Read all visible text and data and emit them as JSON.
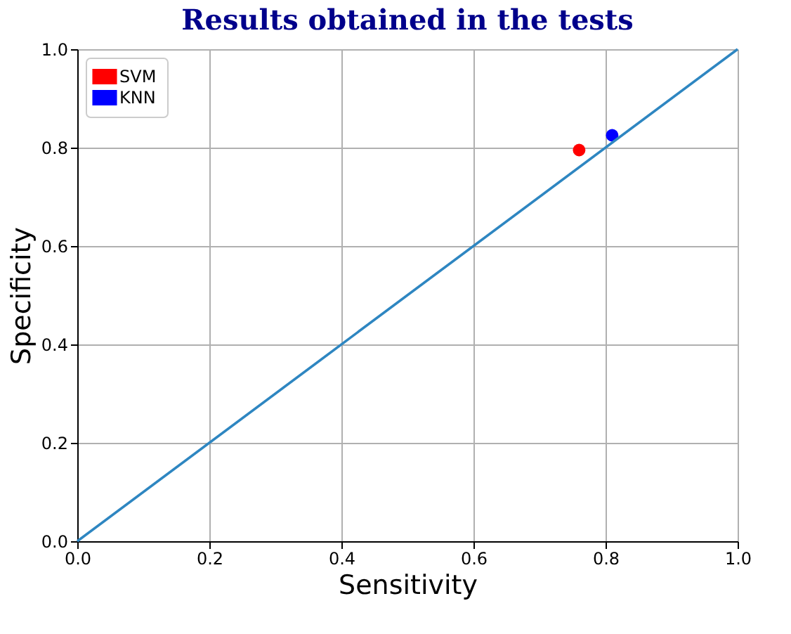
{
  "chart_data": {
    "type": "scatter",
    "title": "Results obtained in the tests",
    "xlabel": "Sensitivity",
    "ylabel": "Specificity",
    "series": [
      {
        "name": "SVM",
        "color": "#ff0000",
        "x": [
          0.76
        ],
        "values": [
          0.795
        ]
      },
      {
        "name": "KNN",
        "color": "#0000ff",
        "x": [
          0.81
        ],
        "values": [
          0.825
        ]
      },
      {
        "type": "line",
        "color": "#2e86c1",
        "marker": "none",
        "x": [
          0.0,
          1.0
        ],
        "values": [
          0.0,
          1.0
        ]
      }
    ],
    "xlim": [
      0.0,
      1.0
    ],
    "ylim": [
      0.0,
      1.0
    ],
    "xticks": [
      {
        "value": 0,
        "label": "0.0"
      },
      0.2,
      0.4,
      0.6,
      0.8,
      {
        "value": 1,
        "label": "1.0"
      }
    ],
    "yticks": [
      {
        "value": 0,
        "label": "0.0"
      },
      0.2,
      0.4,
      0.6,
      0.8,
      {
        "value": 1,
        "label": "1.0"
      }
    ],
    "grid": true,
    "legend": "top left",
    "marker": "circle"
  }
}
